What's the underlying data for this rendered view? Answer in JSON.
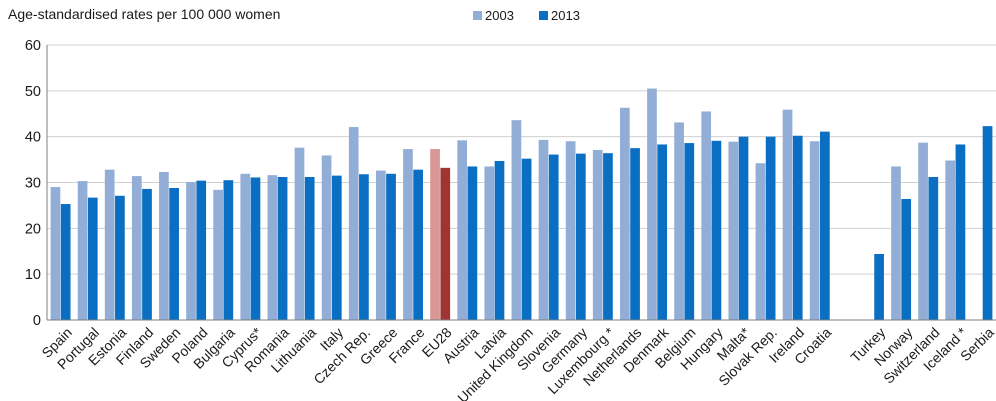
{
  "chart_data": {
    "type": "bar",
    "title": "Age-standardised rates per 100 000 women",
    "xlabel": "",
    "ylabel": "",
    "ylim": [
      0,
      60
    ],
    "yticks": [
      0,
      10,
      20,
      30,
      40,
      50,
      60
    ],
    "grid": true,
    "legend_position": "top",
    "categories": [
      "Spain",
      "Portugal",
      "Estonia",
      "Finland",
      "Sweden",
      "Poland",
      "Bulgaria",
      "Cyprus*",
      "Romania",
      "Lithuania",
      "Italy",
      "Czech Rep.",
      "Greece",
      "France",
      "EU28",
      "Austria",
      "Latvia",
      "United Kingdom",
      "Slovenia",
      "Germany",
      "Luxembourg *",
      "Netherlands",
      "Denmark",
      "Belgium",
      "Hungary",
      "Malta*",
      "Slovak Rep.",
      "Ireland",
      "Croatia",
      "",
      "Turkey",
      "Norway",
      "Switzerland",
      "Iceland *",
      "Serbia"
    ],
    "highlight_category": "EU28",
    "series": [
      {
        "name": "2003",
        "color": "#92aed6",
        "highlight_color": "#d99694",
        "values": [
          29.0,
          30.3,
          32.8,
          31.4,
          32.3,
          30.1,
          28.4,
          31.9,
          31.6,
          37.6,
          35.9,
          42.1,
          32.6,
          37.3,
          37.3,
          39.2,
          33.5,
          43.6,
          39.3,
          39.0,
          37.1,
          46.3,
          50.5,
          43.1,
          45.5,
          38.9,
          34.2,
          45.9,
          39.0,
          null,
          null,
          33.5,
          38.7,
          34.8,
          null
        ]
      },
      {
        "name": "2013",
        "color": "#0a6fc2",
        "highlight_color": "#9e3434",
        "values": [
          25.3,
          26.7,
          27.1,
          28.6,
          28.8,
          30.4,
          30.5,
          31.1,
          31.2,
          31.2,
          31.5,
          31.8,
          31.9,
          32.8,
          33.2,
          33.5,
          34.7,
          35.2,
          36.1,
          36.3,
          36.4,
          37.5,
          38.3,
          38.6,
          39.1,
          40.0,
          40.0,
          40.2,
          41.1,
          null,
          14.4,
          26.4,
          31.2,
          38.3,
          42.3
        ]
      }
    ]
  }
}
